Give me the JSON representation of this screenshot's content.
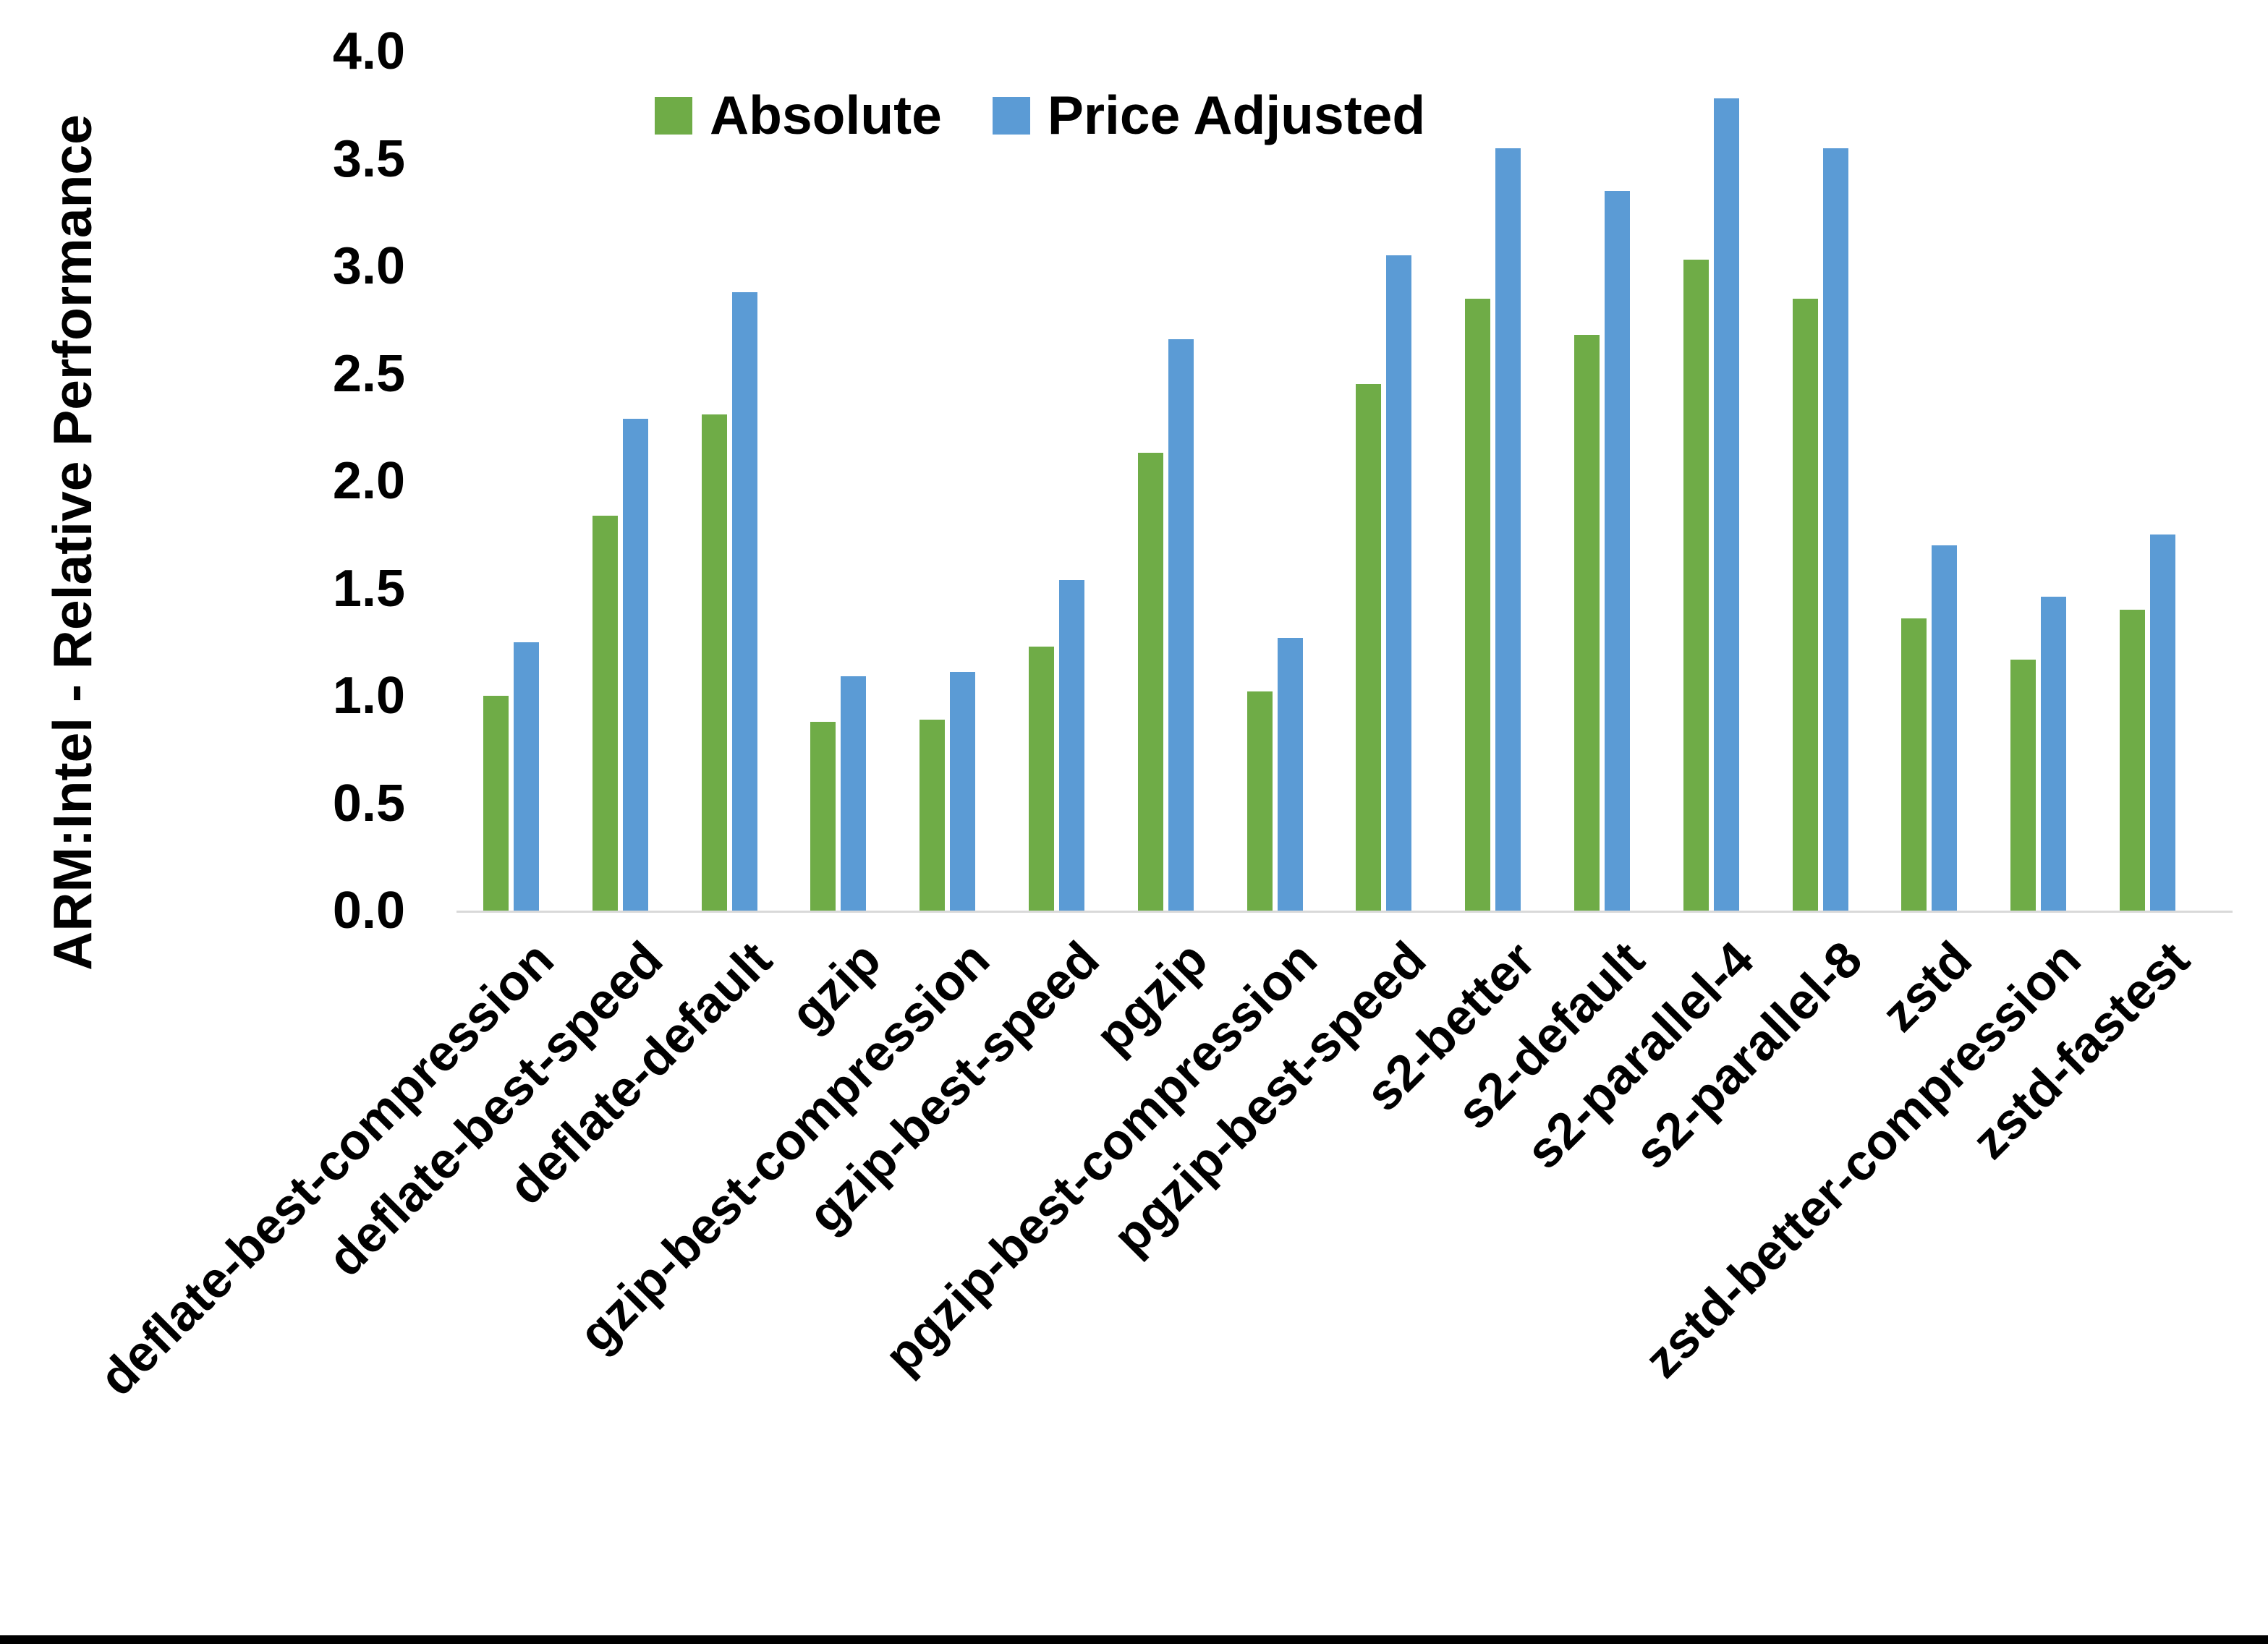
{
  "chart_data": {
    "type": "bar",
    "title": "",
    "xlabel": "",
    "ylabel": "ARM:Intel - Relative Performance",
    "legend_position": "top-center",
    "grid": false,
    "ylim": [
      0.0,
      4.0
    ],
    "ytick_step": 0.5,
    "ytick_labels": [
      "0.0",
      "0.5",
      "1.0",
      "1.5",
      "2.0",
      "2.5",
      "3.0",
      "3.5",
      "4.0"
    ],
    "categories": [
      "deflate-best-compression",
      "deflate-best-speed",
      "deflate-default",
      "gzip",
      "gzip-best-compression",
      "gzip-best-speed",
      "pgzip",
      "pgzip-best-compression",
      "pgzip-best-speed",
      "s2-better",
      "s2-default",
      "s2-parallel-4",
      "s2-parallel-8",
      "zstd",
      "zstd-better-compression",
      "zstd-fastest"
    ],
    "series": [
      {
        "name": "Absolute",
        "color": "#6FAC47",
        "values": [
          1.0,
          1.84,
          2.31,
          0.88,
          0.89,
          1.23,
          2.13,
          1.02,
          2.45,
          2.85,
          2.68,
          3.03,
          2.85,
          1.36,
          1.17,
          1.4
        ]
      },
      {
        "name": "Price Adjusted",
        "color": "#5B9BD5",
        "values": [
          1.25,
          2.29,
          2.88,
          1.09,
          1.11,
          1.54,
          2.66,
          1.27,
          3.05,
          3.55,
          3.35,
          3.78,
          3.55,
          1.7,
          1.46,
          1.75
        ]
      }
    ],
    "colors": {
      "absolute": "#6FAC47",
      "price_adjusted": "#5B9BD5",
      "axis_line": "#D9D9D9",
      "text": "#000000",
      "background": "#FFFFFF",
      "bottom_bar": "#000000"
    }
  }
}
